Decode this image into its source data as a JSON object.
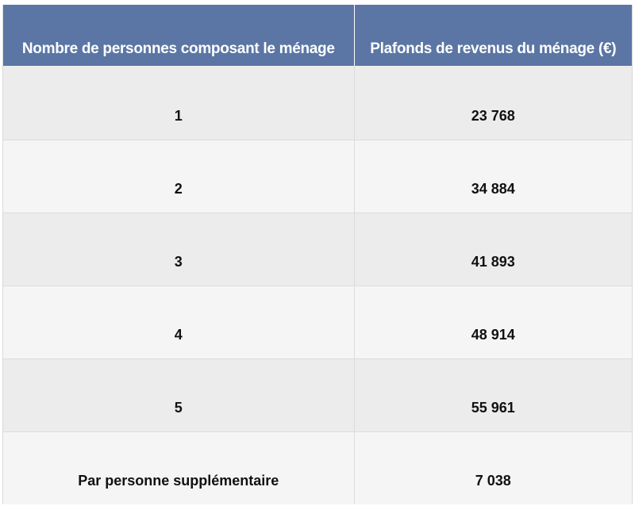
{
  "table": {
    "headers": [
      "Nombre de personnes composant le ménage",
      "Plafonds de revenus du ménage (€)"
    ],
    "rows": [
      [
        "1",
        "23 768"
      ],
      [
        "2",
        "34 884"
      ],
      [
        "3",
        "41 893"
      ],
      [
        "4",
        "48 914"
      ],
      [
        "5",
        "55 961"
      ],
      [
        "Par personne supplémentaire",
        "7 038"
      ]
    ]
  },
  "colors": {
    "header_background": "#5b76a4",
    "header_text": "#ffffff",
    "row_odd": "#ececec",
    "row_even": "#f5f5f5"
  }
}
